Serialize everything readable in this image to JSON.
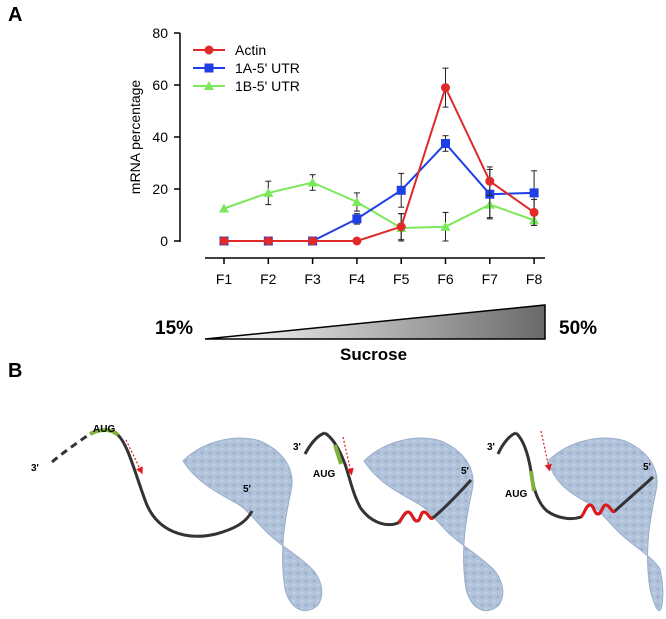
{
  "panels": {
    "a": "A",
    "b": "B"
  },
  "chart_data": {
    "type": "line",
    "categories": [
      "F1",
      "F2",
      "F3",
      "F4",
      "F5",
      "F6",
      "F7",
      "F8"
    ],
    "ylabel": "mRNA percentage",
    "xlabel": "",
    "ylim": [
      0,
      80
    ],
    "yticks": [
      0,
      20,
      40,
      60,
      80
    ],
    "grid": false,
    "legend_position": "top-left",
    "series": [
      {
        "name": "Actin",
        "color": "#e02a2a",
        "marker": "circle",
        "values": [
          0,
          0,
          0,
          0,
          5.5,
          59,
          23,
          11
        ],
        "errors": [
          0,
          0,
          0,
          0,
          5,
          7.5,
          5.5,
          5
        ]
      },
      {
        "name": "1A-5' UTR",
        "color": "#1f3fe6",
        "marker": "square",
        "values": [
          0,
          0,
          0,
          8.5,
          19.5,
          37.5,
          18,
          18.5
        ],
        "errors": [
          0,
          0,
          0,
          2,
          6.5,
          3,
          9.5,
          8.5
        ]
      },
      {
        "name": "1B-5' UTR",
        "color": "#7be85a",
        "marker": "triangle",
        "values": [
          12.5,
          18.5,
          22.5,
          15,
          5,
          5.5,
          14,
          8
        ],
        "errors": [
          0,
          4.5,
          3,
          3.5,
          5.5,
          5.5,
          5,
          2
        ]
      }
    ]
  },
  "gradient": {
    "left_label": "15%",
    "right_label": "50%",
    "caption": "Sucrose"
  },
  "diagram": {
    "labels": {
      "d1_aug": "AUG",
      "d1_3p": "3'",
      "d1_5p": "5'",
      "d2_aug": "AUG",
      "d2_3p": "3'",
      "d2_5p": "5'",
      "d3_aug": "AUG",
      "d3_3p": "3'",
      "d3_5p": "5'"
    },
    "colors": {
      "mrna": "#333333",
      "aug": "#7fb23a",
      "hairpin": "#e0191c",
      "arrow": "#e0191c",
      "ribosome": "#a9bdd6"
    }
  }
}
